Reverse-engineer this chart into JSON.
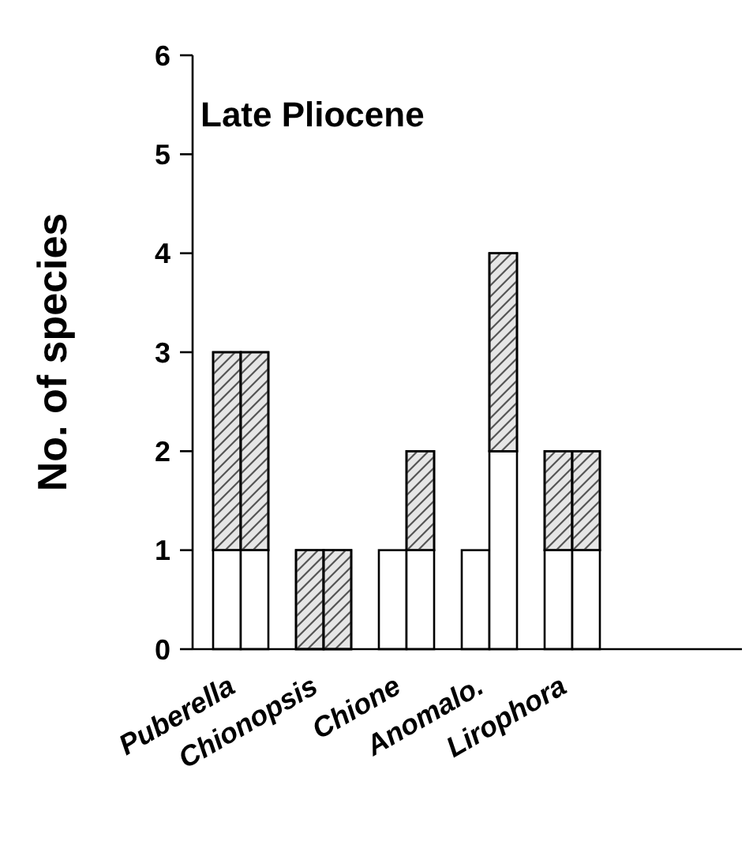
{
  "chart_data": {
    "type": "bar",
    "title": "Late Pliocene",
    "ylabel": "No. of species",
    "stacked": true,
    "categories": [
      "Puberella",
      null,
      null,
      "Chionopsis",
      null,
      null,
      "Chione",
      null,
      null,
      "Anomalo.",
      null,
      null,
      "Lirophora",
      null,
      null
    ],
    "series": [
      {
        "color": "#ffffff",
        "values": [
          1,
          1,
          null,
          0,
          0,
          null,
          1,
          1,
          null,
          1,
          2,
          null,
          1,
          1,
          null
        ]
      },
      {
        "color": "#e6e6e6",
        "values": [
          2,
          2,
          null,
          1,
          1,
          null,
          0,
          1,
          null,
          0,
          2,
          null,
          1,
          1,
          null
        ]
      }
    ],
    "ylim": [
      0,
      6
    ],
    "yticks": [
      0,
      1,
      2,
      3,
      4,
      5,
      6
    ],
    "grid": false
  }
}
